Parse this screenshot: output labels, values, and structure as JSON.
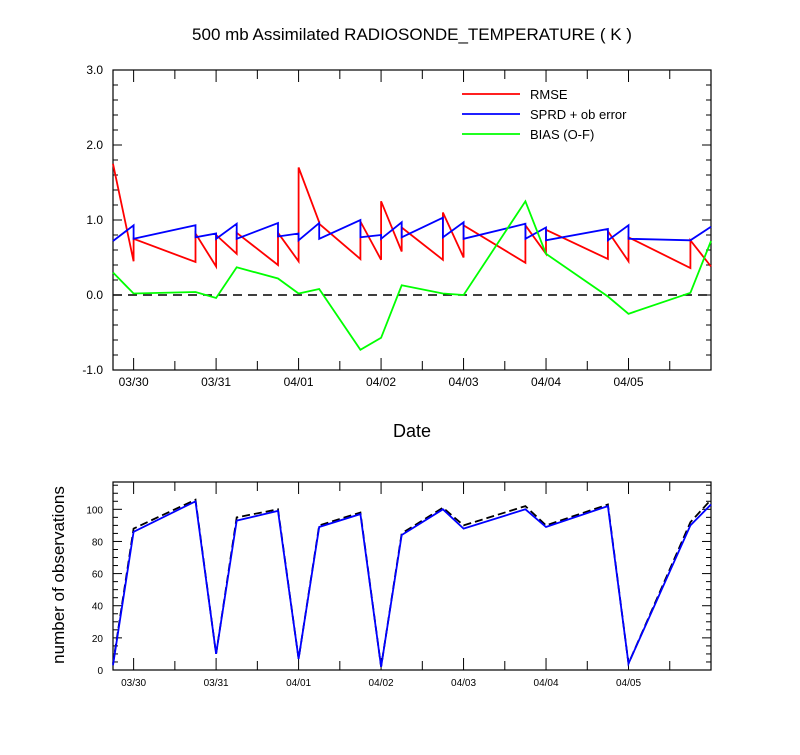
{
  "chart_data": [
    {
      "type": "line",
      "title": "500 mb Assimilated RADIOSONDE_TEMPERATURE ( K )",
      "xlabel": "Date",
      "ylabel": "",
      "x_axis": "time",
      "xlim": [
        "03/29 18Z",
        "04/06 00Z"
      ],
      "ylim": [
        -1.0,
        3.0
      ],
      "y_ticks": [
        -1.0,
        0.0,
        1.0,
        2.0,
        3.0
      ],
      "y_tick_labels": [
        "-1.0",
        "0.0",
        "1.0",
        "2.0",
        "3.0"
      ],
      "x_tick_labels": [
        "03/30",
        "03/31",
        "04/01",
        "04/02",
        "04/03",
        "04/04",
        "04/05"
      ],
      "reference_line": {
        "y": 0.0,
        "style": "dashed",
        "color": "#000000"
      },
      "legend": {
        "placement": "top-right",
        "entries": [
          {
            "label": "RMSE",
            "color": "#ff0000"
          },
          {
            "label": "SPRD + ob error",
            "color": "#0000ff"
          },
          {
            "label": "BIAS (O-F)",
            "color": "#00ff00"
          }
        ]
      },
      "series": [
        {
          "name": "RMSE",
          "color": "#ff0000",
          "x": [
            "03/29 18Z",
            "03/30 00Z",
            "03/30 00Z",
            "03/30 18Z",
            "03/30 18Z",
            "03/31 00Z",
            "03/31 00Z",
            "03/31 06Z",
            "03/31 06Z",
            "03/31 18Z",
            "03/31 18Z",
            "04/01 00Z",
            "04/01 00Z",
            "04/01 06Z",
            "04/01 06Z",
            "04/01 18Z",
            "04/01 18Z",
            "04/02 00Z",
            "04/02 00Z",
            "04/02 06Z",
            "04/02 06Z",
            "04/02 18Z",
            "04/02 18Z",
            "04/03 00Z",
            "04/03 00Z",
            "04/03 18Z",
            "04/03 18Z",
            "04/04 00Z",
            "04/04 00Z",
            "04/04 18Z",
            "04/04 18Z",
            "04/05 00Z",
            "04/05 00Z",
            "04/05 18Z",
            "04/05 18Z",
            "04/06 00Z"
          ],
          "y": [
            1.75,
            0.45,
            0.75,
            0.44,
            0.82,
            0.38,
            0.8,
            0.55,
            0.83,
            0.4,
            0.83,
            0.45,
            1.7,
            0.97,
            0.95,
            0.48,
            0.98,
            0.47,
            1.25,
            0.58,
            0.9,
            0.47,
            1.1,
            0.5,
            0.93,
            0.43,
            0.93,
            0.55,
            0.87,
            0.48,
            0.85,
            0.45,
            0.77,
            0.36,
            0.73,
            0.38
          ]
        },
        {
          "name": "SPRD + ob error",
          "color": "#0000ff",
          "x": [
            "03/29 18Z",
            "03/30 00Z",
            "03/30 00Z",
            "03/30 18Z",
            "03/30 18Z",
            "03/31 00Z",
            "03/31 00Z",
            "03/31 06Z",
            "03/31 06Z",
            "03/31 18Z",
            "03/31 18Z",
            "04/01 00Z",
            "04/01 00Z",
            "04/01 06Z",
            "04/01 06Z",
            "04/01 18Z",
            "04/01 18Z",
            "04/02 00Z",
            "04/02 00Z",
            "04/02 06Z",
            "04/02 06Z",
            "04/02 18Z",
            "04/02 18Z",
            "04/03 00Z",
            "04/03 00Z",
            "04/03 18Z",
            "04/03 18Z",
            "04/04 00Z",
            "04/04 00Z",
            "04/04 18Z",
            "04/04 18Z",
            "04/05 00Z",
            "04/05 00Z",
            "04/05 18Z",
            "04/05 18Z",
            "04/06 00Z"
          ],
          "y": [
            0.72,
            0.93,
            0.75,
            0.93,
            0.77,
            0.82,
            0.75,
            0.95,
            0.75,
            0.96,
            0.78,
            0.82,
            0.73,
            0.96,
            0.75,
            1.0,
            0.77,
            0.8,
            0.75,
            0.97,
            0.77,
            1.03,
            0.77,
            0.97,
            0.75,
            0.95,
            0.75,
            0.9,
            0.73,
            0.88,
            0.73,
            0.93,
            0.75,
            0.73,
            0.73,
            0.91
          ]
        },
        {
          "name": "BIAS (O-F)",
          "color": "#00ff00",
          "x": [
            "03/29 18Z",
            "03/30 00Z",
            "03/30 18Z",
            "03/31 00Z",
            "03/31 06Z",
            "03/31 18Z",
            "04/01 00Z",
            "04/01 06Z",
            "04/01 18Z",
            "04/02 00Z",
            "04/02 06Z",
            "04/02 18Z",
            "04/03 00Z",
            "04/03 18Z",
            "04/04 00Z",
            "04/04 18Z",
            "04/05 00Z",
            "04/05 18Z",
            "04/06 00Z"
          ],
          "y": [
            0.3,
            0.02,
            0.04,
            -0.04,
            0.37,
            0.22,
            0.02,
            0.08,
            -0.73,
            -0.57,
            0.13,
            0.02,
            0.0,
            1.25,
            0.55,
            -0.02,
            -0.25,
            0.03,
            0.72
          ]
        }
      ]
    },
    {
      "type": "line",
      "title": "",
      "xlabel": "",
      "ylabel": "number of observations",
      "x_axis": "time",
      "xlim": [
        "03/29 18Z",
        "04/06 00Z"
      ],
      "ylim": [
        0,
        117
      ],
      "y_ticks": [
        0,
        20,
        40,
        60,
        80,
        100
      ],
      "y_tick_labels": [
        "0",
        "20",
        "40",
        "60",
        "80",
        "100"
      ],
      "x_tick_labels": [
        "03/30",
        "03/31",
        "04/01",
        "04/02",
        "04/03",
        "04/04",
        "04/05"
      ],
      "series": [
        {
          "color": "#000000",
          "style": "dashed",
          "x": [
            "03/29 18Z",
            "03/30 00Z",
            "03/30 18Z",
            "03/31 00Z",
            "03/31 06Z",
            "03/31 18Z",
            "04/01 00Z",
            "04/01 06Z",
            "04/01 18Z",
            "04/02 00Z",
            "04/02 06Z",
            "04/02 18Z",
            "04/03 00Z",
            "04/03 18Z",
            "04/04 00Z",
            "04/04 18Z",
            "04/05 00Z",
            "04/05 18Z",
            "04/06 00Z"
          ],
          "y": [
            4,
            88,
            106,
            10,
            95,
            100,
            7,
            90,
            98,
            2,
            85,
            101,
            90,
            102,
            90,
            103,
            4,
            92,
            106
          ]
        },
        {
          "color": "#0000ff",
          "style": "solid",
          "x": [
            "03/29 18Z",
            "03/30 00Z",
            "03/30 18Z",
            "03/31 00Z",
            "03/31 06Z",
            "03/31 18Z",
            "04/01 00Z",
            "04/01 06Z",
            "04/01 18Z",
            "04/02 00Z",
            "04/02 06Z",
            "04/02 18Z",
            "04/03 00Z",
            "04/03 18Z",
            "04/04 00Z",
            "04/04 18Z",
            "04/05 00Z",
            "04/05 18Z",
            "04/06 00Z"
          ],
          "y": [
            3,
            86,
            105,
            10,
            93,
            99,
            7,
            89,
            97,
            2,
            84,
            100,
            88,
            100,
            89,
            102,
            4,
            90,
            103
          ]
        }
      ]
    }
  ]
}
